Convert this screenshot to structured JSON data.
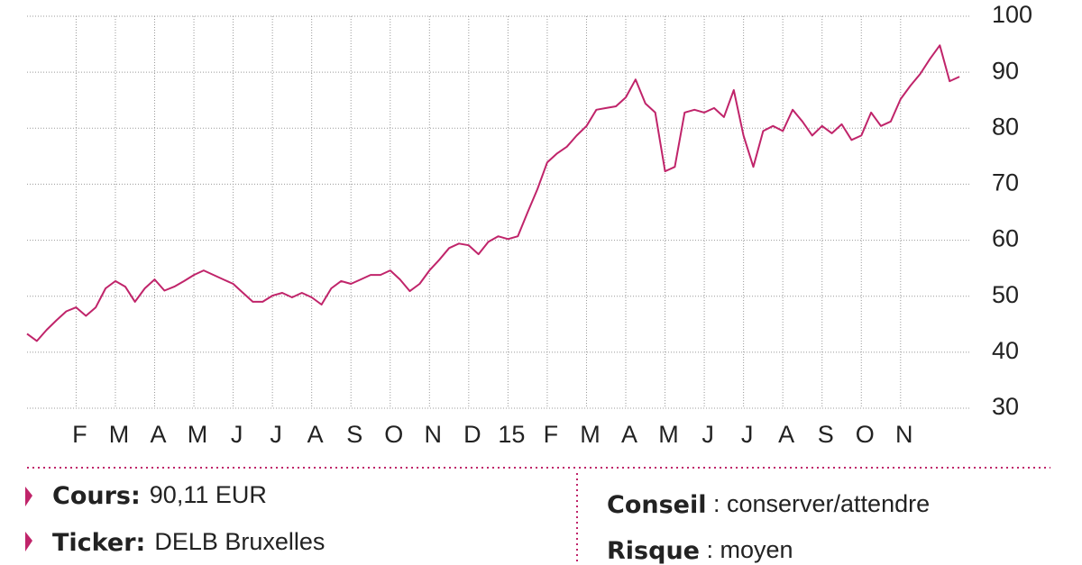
{
  "chart_data": {
    "type": "line",
    "categories": [
      null,
      null,
      null,
      null,
      null,
      "F",
      null,
      null,
      null,
      "M",
      null,
      null,
      null,
      "A",
      null,
      null,
      null,
      "M",
      null,
      null,
      null,
      "J",
      null,
      null,
      null,
      "J",
      null,
      null,
      null,
      "A",
      null,
      null,
      null,
      "S",
      null,
      null,
      null,
      "O",
      null,
      null,
      null,
      "N",
      null,
      null,
      null,
      "D",
      null,
      null,
      null,
      "15",
      null,
      null,
      null,
      "F",
      null,
      null,
      null,
      "M",
      null,
      null,
      null,
      "A",
      null,
      null,
      null,
      "M",
      null,
      null,
      null,
      "J",
      null,
      null,
      null,
      "J",
      null,
      null,
      null,
      "A",
      null,
      null,
      null,
      "S",
      null,
      null,
      null,
      "O",
      null,
      null,
      null,
      "N",
      null,
      null,
      null,
      null,
      null,
      null
    ],
    "values": [
      43.3,
      42,
      44,
      45.7,
      47.3,
      48,
      46.5,
      48,
      51.4,
      52.7,
      51.7,
      49,
      51.4,
      53,
      51,
      51.7,
      52.7,
      53.8,
      54.6,
      53.8,
      53,
      52.2,
      50.6,
      49,
      49,
      50.1,
      50.6,
      49.8,
      50.6,
      49.8,
      48.5,
      51.4,
      52.7,
      52.2,
      53,
      53.8,
      53.8,
      54.6,
      53,
      50.9,
      52.2,
      54.6,
      56.5,
      58.6,
      59.4,
      59.1,
      57.5,
      59.7,
      60.7,
      60.2,
      60.7,
      65,
      69.1,
      73.9,
      75.5,
      76.7,
      78.7,
      80.4,
      83.3,
      83.6,
      83.9,
      85.5,
      88.7,
      84.4,
      82.8,
      72.3,
      73.1,
      82.8,
      83.3,
      82.8,
      83.6,
      82,
      86.8,
      78.7,
      73.1,
      79.5,
      80.4,
      79.5,
      83.3,
      81.2,
      78.7,
      80.4,
      79.1,
      80.7,
      77.9,
      78.7,
      82.8,
      80.4,
      81.2,
      85.2,
      87.6,
      89.7,
      92.4,
      94.8,
      88.4,
      89.2
    ],
    "color": "#c0246a",
    "ylim": [
      30,
      100
    ],
    "yticks": [
      30,
      40,
      50,
      60,
      70,
      80,
      90,
      100
    ],
    "grid": true
  },
  "info": {
    "left": [
      {
        "label": "Cours:",
        "text": "90,11 EUR"
      },
      {
        "label": "Ticker:",
        "text": "DELB Bruxelles"
      }
    ],
    "right": [
      {
        "label": "Conseil",
        "text": " : conserver/attendre"
      },
      {
        "label": "Risque",
        "text": " : moyen"
      }
    ]
  }
}
